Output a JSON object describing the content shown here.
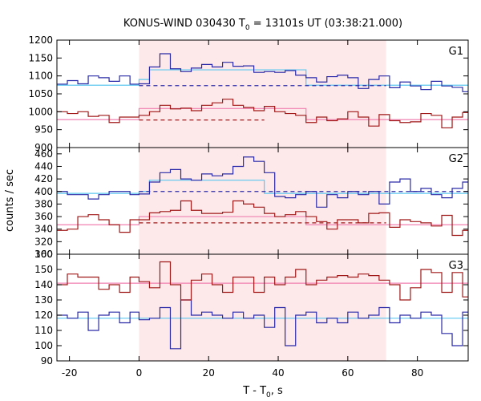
{
  "chart_data": {
    "type": "line",
    "title": {
      "prefix": "KONUS-WIND 030430 T",
      "sub": "0",
      "suffix": " = 13101s UT (03:38:21.000)"
    },
    "xlabel": {
      "prefix": "T - T",
      "sub": "0",
      "suffix": ", s"
    },
    "ylabel": "counts / sec",
    "xlim": [
      -23.6,
      94.6
    ],
    "xticks": [
      -20,
      0,
      20,
      40,
      60,
      80
    ],
    "grid": false,
    "highlight_interval": [
      0,
      71.0
    ],
    "colors": {
      "blue": "#2a2aa8",
      "red": "#a01818",
      "cyan": "#5bc8f0",
      "pink": "#f080b0",
      "shade": "#fde8ea"
    },
    "bin_edges": [
      -23.6,
      -20.6,
      -17.6,
      -14.6,
      -11.6,
      -8.6,
      -5.6,
      -2.6,
      0,
      3,
      6,
      9,
      12,
      15,
      18,
      21,
      24,
      27,
      30,
      33,
      36,
      39,
      42,
      45,
      48,
      51,
      54,
      57,
      60,
      63,
      66,
      69,
      72,
      75,
      78,
      81,
      84,
      87,
      90,
      93,
      94.6
    ],
    "panels": [
      {
        "label": "G1",
        "ylim": [
          900,
          1200
        ],
        "yticks": [
          900,
          950,
          1000,
          1050,
          1100,
          1150,
          1200
        ],
        "series": [
          {
            "color": "blue",
            "values": [
              1077,
              1087,
              1078,
              1100,
              1095,
              1085,
              1100,
              1077,
              1078,
              1125,
              1162,
              1120,
              1112,
              1122,
              1132,
              1125,
              1138,
              1127,
              1128,
              1110,
              1112,
              1110,
              1115,
              1102,
              1095,
              1083,
              1098,
              1102,
              1095,
              1065,
              1090,
              1100,
              1067,
              1083,
              1072,
              1062,
              1085,
              1072,
              1068,
              1056
            ]
          },
          {
            "color": "red",
            "values": [
              1000,
              995,
              1000,
              987,
              990,
              970,
              985,
              985,
              990,
              1000,
              1018,
              1008,
              1010,
              1003,
              1018,
              1025,
              1035,
              1018,
              1012,
              1003,
              1015,
              1000,
              995,
              990,
              970,
              985,
              975,
              980,
              1000,
              985,
              960,
              992,
              975,
              970,
              972,
              995,
              990,
              955,
              985,
              998
            ]
          }
        ],
        "background": [
          {
            "color": "cyan",
            "points": [
              [
                -23.6,
                1074
              ],
              [
                0,
                1074
              ],
              [
                0,
                1090
              ],
              [
                3,
                1090
              ],
              [
                3,
                1117
              ],
              [
                48,
                1117
              ],
              [
                48,
                1074
              ],
              [
                94.6,
                1074
              ]
            ]
          },
          {
            "color": "pink",
            "points": [
              [
                -23.6,
                978
              ],
              [
                0,
                978
              ],
              [
                0,
                1009
              ],
              [
                48,
                1009
              ],
              [
                48,
                978
              ],
              [
                94.6,
                978
              ]
            ]
          }
        ],
        "baselines": [
          {
            "color": "blue",
            "y": 1073,
            "x": [
              0,
              71
            ]
          },
          {
            "color": "red",
            "y": 977,
            "x": [
              0,
              36
            ]
          }
        ]
      },
      {
        "label": "G2",
        "ylim": [
          300,
          470
        ],
        "yticks": [
          300,
          320,
          340,
          360,
          380,
          400,
          420,
          440,
          460
        ],
        "series": [
          {
            "color": "blue",
            "values": [
              400,
              395,
              395,
              388,
              395,
              400,
              400,
              395,
              396,
              415,
              430,
              435,
              420,
              418,
              428,
              425,
              428,
              440,
              455,
              448,
              430,
              392,
              390,
              395,
              400,
              375,
              395,
              390,
              400,
              395,
              400,
              380,
              415,
              420,
              400,
              405,
              395,
              390,
              405,
              415
            ]
          },
          {
            "color": "red",
            "values": [
              338,
              340,
              360,
              363,
              355,
              347,
              335,
              355,
              355,
              366,
              368,
              370,
              385,
              370,
              365,
              365,
              367,
              385,
              380,
              375,
              365,
              360,
              363,
              368,
              360,
              352,
              340,
              355,
              355,
              350,
              365,
              366,
              343,
              355,
              352,
              350,
              345,
              362,
              330,
              338
            ]
          }
        ],
        "background": [
          {
            "color": "cyan",
            "points": [
              [
                -23.6,
                397
              ],
              [
                0,
                397
              ],
              [
                0,
                400
              ],
              [
                3,
                400
              ],
              [
                3,
                418
              ],
              [
                36,
                418
              ],
              [
                36,
                397
              ],
              [
                94.6,
                397
              ]
            ]
          },
          {
            "color": "pink",
            "points": [
              [
                -23.6,
                347
              ],
              [
                0,
                347
              ],
              [
                0,
                360
              ],
              [
                48,
                360
              ],
              [
                48,
                347
              ],
              [
                94.6,
                347
              ]
            ]
          }
        ],
        "baselines": [
          {
            "color": "blue",
            "y": 400,
            "x": [
              0,
              94.6
            ]
          },
          {
            "color": "red",
            "y": 350,
            "x": [
              0,
              71
            ]
          }
        ]
      },
      {
        "label": "G3",
        "ylim": [
          90,
          160
        ],
        "yticks": [
          90,
          100,
          110,
          120,
          130,
          140,
          150,
          160
        ],
        "series": [
          {
            "color": "blue",
            "values": [
              120,
              118,
              122,
              110,
              120,
              122,
              115,
              122,
              117,
              118,
              125,
              98,
              130,
              120,
              122,
              120,
              118,
              122,
              118,
              120,
              112,
              125,
              100,
              120,
              122,
              115,
              118,
              115,
              122,
              118,
              120,
              125,
              115,
              120,
              118,
              122,
              120,
              108,
              100,
              122
            ]
          },
          {
            "color": "red",
            "values": [
              140,
              147,
              145,
              145,
              137,
              140,
              135,
              145,
              142,
              138,
              155,
              140,
              130,
              143,
              147,
              140,
              135,
              145,
              145,
              135,
              145,
              140,
              145,
              150,
              140,
              143,
              145,
              146,
              145,
              147,
              146,
              143,
              140,
              130,
              138,
              150,
              148,
              135,
              148,
              132
            ]
          }
        ],
        "background": [
          {
            "color": "cyan",
            "points": [
              [
                -23.6,
                118
              ],
              [
                94.6,
                118
              ]
            ]
          },
          {
            "color": "pink",
            "points": [
              [
                -23.6,
                141
              ],
              [
                94.6,
                141
              ]
            ]
          }
        ],
        "baselines": []
      }
    ]
  }
}
